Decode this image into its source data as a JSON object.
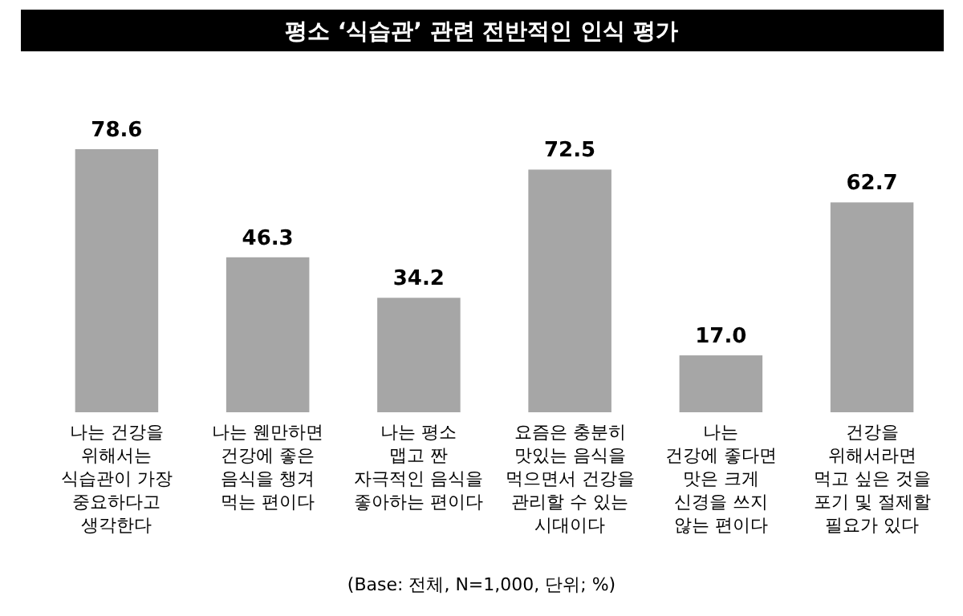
{
  "chart_data": {
    "type": "bar",
    "title": "평소 ‘식습관’ 관련 전반적인 인식 평가",
    "categories": [
      "나는 건강을\n위해서는\n식습관이 가장\n중요하다고\n생각한다",
      "나는 웬만하면\n건강에 좋은\n음식을 챙겨\n먹는 편이다",
      "나는 평소\n맵고 짠\n자극적인 음식을\n좋아하는 편이다",
      "요즘은 충분히\n맛있는 음식을\n먹으면서 건강을\n관리할 수 있는\n시대이다",
      "나는\n건강에 좋다면\n맛은 크게\n신경을 쓰지\n않는 편이다",
      "건강을\n위해서라면\n먹고 싶은 것을\n포기 및 절제할\n필요가 있다"
    ],
    "values": [
      78.6,
      46.3,
      34.2,
      72.5,
      17.0,
      62.7
    ],
    "color": "#a6a6a6",
    "value_labels": [
      "78.6",
      "46.3",
      "34.2",
      "72.5",
      "17.0",
      "62.7"
    ],
    "annotations": [
      "(Base: 전체, N=1,000, 단위; %)"
    ]
  }
}
